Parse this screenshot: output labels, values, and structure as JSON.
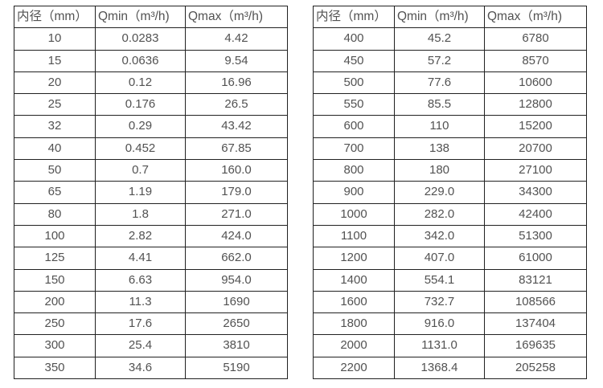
{
  "colors": {
    "background": "#ffffff",
    "table_border": "#212121",
    "text": "#525252"
  },
  "tables": [
    {
      "name": "flow-rates-dn10-dn350",
      "headers": [
        "内径（mm）",
        "Qmin（m³/h)",
        "Qmax（m³/h)"
      ],
      "rows": [
        [
          "10",
          "0.0283",
          "4.42"
        ],
        [
          "15",
          "0.0636",
          "9.54"
        ],
        [
          "20",
          "0.12",
          "16.96"
        ],
        [
          "25",
          "0.176",
          "26.5"
        ],
        [
          "32",
          "0.29",
          "43.42"
        ],
        [
          "40",
          "0.452",
          "67.85"
        ],
        [
          "50",
          "0.7",
          "160.0"
        ],
        [
          "65",
          "1.19",
          "179.0"
        ],
        [
          "80",
          "1.8",
          "271.0"
        ],
        [
          "100",
          "2.82",
          "424.0"
        ],
        [
          "125",
          "4.41",
          "662.0"
        ],
        [
          "150",
          "6.63",
          "954.0"
        ],
        [
          "200",
          "11.3",
          "1690"
        ],
        [
          "250",
          "17.6",
          "2650"
        ],
        [
          "300",
          "25.4",
          "3810"
        ],
        [
          "350",
          "34.6",
          "5190"
        ]
      ]
    },
    {
      "name": "flow-rates-dn400-dn2200",
      "headers": [
        "内径（mm）",
        "Qmin（m³/h)",
        "Qmax（m³/h)"
      ],
      "rows": [
        [
          "400",
          "45.2",
          "6780"
        ],
        [
          "450",
          "57.2",
          "8570"
        ],
        [
          "500",
          "77.6",
          "10600"
        ],
        [
          "550",
          "85.5",
          "12800"
        ],
        [
          "600",
          "110",
          "15200"
        ],
        [
          "700",
          "138",
          "20700"
        ],
        [
          "800",
          "180",
          "27100"
        ],
        [
          "900",
          "229.0",
          "34300"
        ],
        [
          "1000",
          "282.0",
          "42400"
        ],
        [
          "1100",
          "342.0",
          "51300"
        ],
        [
          "1200",
          "407.0",
          "61000"
        ],
        [
          "1400",
          "554.1",
          "83121"
        ],
        [
          "1600",
          "732.7",
          "108566"
        ],
        [
          "1800",
          "916.0",
          "137404"
        ],
        [
          "2000",
          "1131.0",
          "169635"
        ],
        [
          "2200",
          "1368.4",
          "205258"
        ]
      ]
    }
  ]
}
